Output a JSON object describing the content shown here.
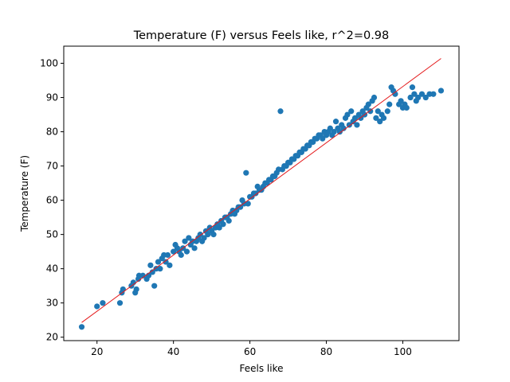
{
  "chart_data": {
    "type": "scatter",
    "title": "Temperature (F) versus Feels like, r^2=0.98",
    "xlabel": "Feels like",
    "ylabel": "Temperature (F)",
    "xlim": [
      11.3,
      114.7
    ],
    "ylim": [
      19,
      105
    ],
    "xticks": [
      20,
      40,
      60,
      80,
      100
    ],
    "yticks": [
      20,
      30,
      40,
      50,
      60,
      70,
      80,
      90,
      100
    ],
    "grid": false,
    "legend": "none",
    "colors": {
      "points": "#1f77b4",
      "fit_line": "#e41a1c",
      "axes": "#000000"
    },
    "fit_line": {
      "x": [
        16,
        110
      ],
      "y": [
        24.3,
        101.4
      ]
    },
    "series": [
      {
        "values": [
          [
            16,
            23
          ],
          [
            20,
            29
          ],
          [
            21.5,
            30
          ],
          [
            26,
            30
          ],
          [
            26.5,
            33
          ],
          [
            26.8,
            34
          ],
          [
            29,
            35
          ],
          [
            29.5,
            36
          ],
          [
            30,
            33
          ],
          [
            30.3,
            34
          ],
          [
            30.8,
            37
          ],
          [
            31,
            38
          ],
          [
            32,
            38
          ],
          [
            33,
            37
          ],
          [
            33.5,
            38
          ],
          [
            34,
            41
          ],
          [
            34.5,
            39
          ],
          [
            35,
            35
          ],
          [
            35.5,
            40
          ],
          [
            36,
            42
          ],
          [
            36.5,
            40
          ],
          [
            37,
            43
          ],
          [
            37.5,
            44
          ],
          [
            38,
            42
          ],
          [
            38.5,
            44
          ],
          [
            39,
            41
          ],
          [
            40,
            45
          ],
          [
            40.5,
            47
          ],
          [
            41,
            46
          ],
          [
            41.5,
            45
          ],
          [
            42,
            44
          ],
          [
            42.5,
            46
          ],
          [
            43,
            48
          ],
          [
            43.5,
            45
          ],
          [
            44,
            49
          ],
          [
            44.5,
            47
          ],
          [
            45,
            48
          ],
          [
            45.5,
            46
          ],
          [
            46,
            48
          ],
          [
            46.5,
            49
          ],
          [
            47,
            50
          ],
          [
            47.5,
            48
          ],
          [
            48,
            49
          ],
          [
            48.5,
            51
          ],
          [
            49,
            50
          ],
          [
            49.5,
            52
          ],
          [
            50,
            51
          ],
          [
            50.5,
            50
          ],
          [
            51,
            52
          ],
          [
            51.5,
            53
          ],
          [
            52,
            52
          ],
          [
            52.5,
            54
          ],
          [
            53,
            53
          ],
          [
            53.5,
            55
          ],
          [
            54,
            55
          ],
          [
            54.5,
            54
          ],
          [
            55,
            56
          ],
          [
            55.5,
            57
          ],
          [
            56,
            56
          ],
          [
            56.5,
            57
          ],
          [
            57,
            58
          ],
          [
            57.5,
            58
          ],
          [
            58,
            60
          ],
          [
            58.5,
            59
          ],
          [
            59,
            68
          ],
          [
            59.5,
            59
          ],
          [
            60,
            61
          ],
          [
            60.5,
            61
          ],
          [
            61,
            62
          ],
          [
            61.5,
            62
          ],
          [
            62,
            64
          ],
          [
            62.5,
            63
          ],
          [
            63,
            63
          ],
          [
            63.5,
            64
          ],
          [
            64,
            65
          ],
          [
            64.5,
            65
          ],
          [
            65,
            66
          ],
          [
            65.5,
            66
          ],
          [
            66,
            67
          ],
          [
            66.5,
            67
          ],
          [
            67,
            68
          ],
          [
            67.5,
            69
          ],
          [
            68,
            86
          ],
          [
            68.5,
            69
          ],
          [
            69,
            70
          ],
          [
            69.5,
            70
          ],
          [
            70,
            71
          ],
          [
            70.5,
            71
          ],
          [
            71,
            72
          ],
          [
            71.5,
            72
          ],
          [
            72,
            73
          ],
          [
            72.5,
            73
          ],
          [
            73,
            74
          ],
          [
            73.5,
            74
          ],
          [
            74,
            75
          ],
          [
            74.5,
            75
          ],
          [
            75,
            76
          ],
          [
            75.5,
            76
          ],
          [
            76,
            77
          ],
          [
            76.5,
            77
          ],
          [
            77,
            78
          ],
          [
            77.5,
            78
          ],
          [
            78,
            79
          ],
          [
            78.5,
            79
          ],
          [
            79,
            78
          ],
          [
            79.5,
            80
          ],
          [
            80,
            79
          ],
          [
            80.5,
            80
          ],
          [
            81,
            81
          ],
          [
            81.5,
            79
          ],
          [
            82,
            80
          ],
          [
            82.5,
            83
          ],
          [
            83,
            81
          ],
          [
            83.5,
            80
          ],
          [
            84,
            82
          ],
          [
            84.5,
            81
          ],
          [
            85,
            84
          ],
          [
            85.5,
            85
          ],
          [
            86,
            82
          ],
          [
            86.5,
            86
          ],
          [
            87,
            83
          ],
          [
            87.5,
            84
          ],
          [
            88,
            82
          ],
          [
            88.5,
            85
          ],
          [
            89,
            84
          ],
          [
            89.5,
            86
          ],
          [
            90,
            85
          ],
          [
            90.5,
            87
          ],
          [
            91,
            88
          ],
          [
            91.5,
            86
          ],
          [
            92,
            89
          ],
          [
            92.5,
            90
          ],
          [
            93,
            84
          ],
          [
            93.5,
            86
          ],
          [
            94,
            83
          ],
          [
            94.5,
            85
          ],
          [
            95,
            84
          ],
          [
            96,
            86
          ],
          [
            96.5,
            88
          ],
          [
            97,
            93
          ],
          [
            97.5,
            92
          ],
          [
            98,
            91
          ],
          [
            99,
            88
          ],
          [
            99.5,
            89
          ],
          [
            100,
            87
          ],
          [
            100.5,
            88
          ],
          [
            101,
            87
          ],
          [
            102,
            90
          ],
          [
            102.5,
            93
          ],
          [
            103,
            91
          ],
          [
            103.5,
            89
          ],
          [
            104,
            90
          ],
          [
            105,
            91
          ],
          [
            106,
            90
          ],
          [
            107,
            91
          ],
          [
            108,
            91
          ],
          [
            110,
            92
          ]
        ]
      }
    ]
  }
}
